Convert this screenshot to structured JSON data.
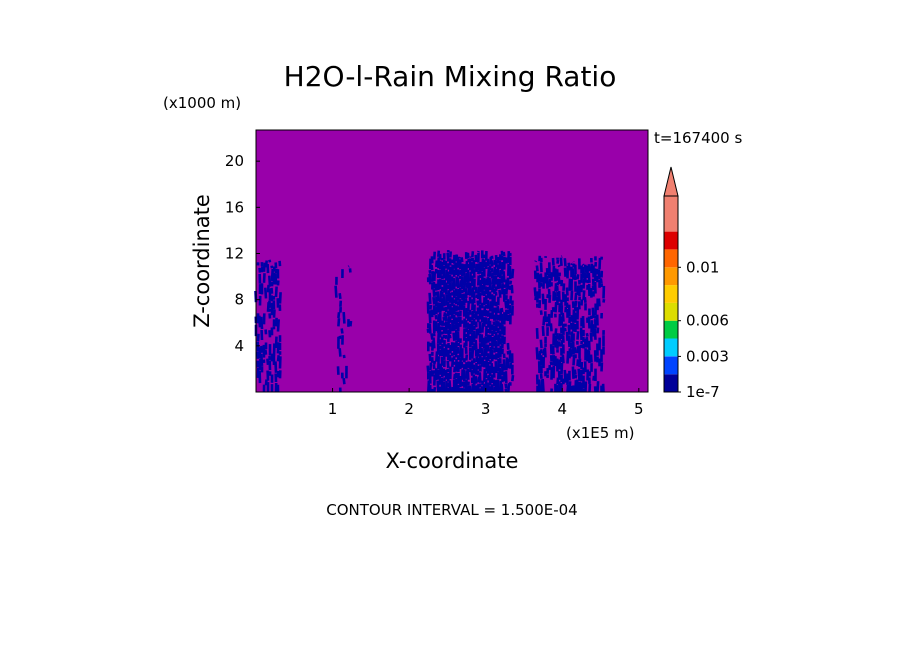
{
  "chart_data": {
    "type": "heatmap",
    "title": "H2O-l-Rain Mixing Ratio",
    "time_label": "t=167400 s",
    "xlabel": "X-coordinate",
    "ylabel": "Z-coordinate",
    "x_unit": "(x1E5 m)",
    "y_unit": "(x1000 m)",
    "xlim": [
      0,
      5.12
    ],
    "ylim": [
      0,
      22.7
    ],
    "xticks": [
      "1",
      "2",
      "3",
      "4",
      "5"
    ],
    "yticks": [
      "4",
      "8",
      "12",
      "16",
      "20"
    ],
    "background_color": "#9900aa",
    "rain_color": "#0000a8",
    "rain_regions": [
      {
        "x": [
          0.0,
          0.33
        ],
        "ztop": 11.5,
        "density": 0.55
      },
      {
        "x": [
          1.05,
          1.25
        ],
        "ztop": 11.0,
        "density": 0.2
      },
      {
        "x": [
          2.25,
          3.35
        ],
        "ztop": 12.3,
        "density": 0.93
      },
      {
        "x": [
          3.65,
          4.55
        ],
        "ztop": 11.8,
        "density": 0.62
      }
    ],
    "colorbar": {
      "colors": [
        "#000099",
        "#0044ff",
        "#00ccff",
        "#00cc44",
        "#dddd00",
        "#ffcc00",
        "#ff9900",
        "#ff6600",
        "#dd0000",
        "#f08070"
      ],
      "extend_color": "#f08070",
      "labels": [
        "1e-7",
        "0.003",
        "0.006",
        "0.01"
      ]
    },
    "footer": "CONTOUR INTERVAL = 1.500E-04"
  }
}
